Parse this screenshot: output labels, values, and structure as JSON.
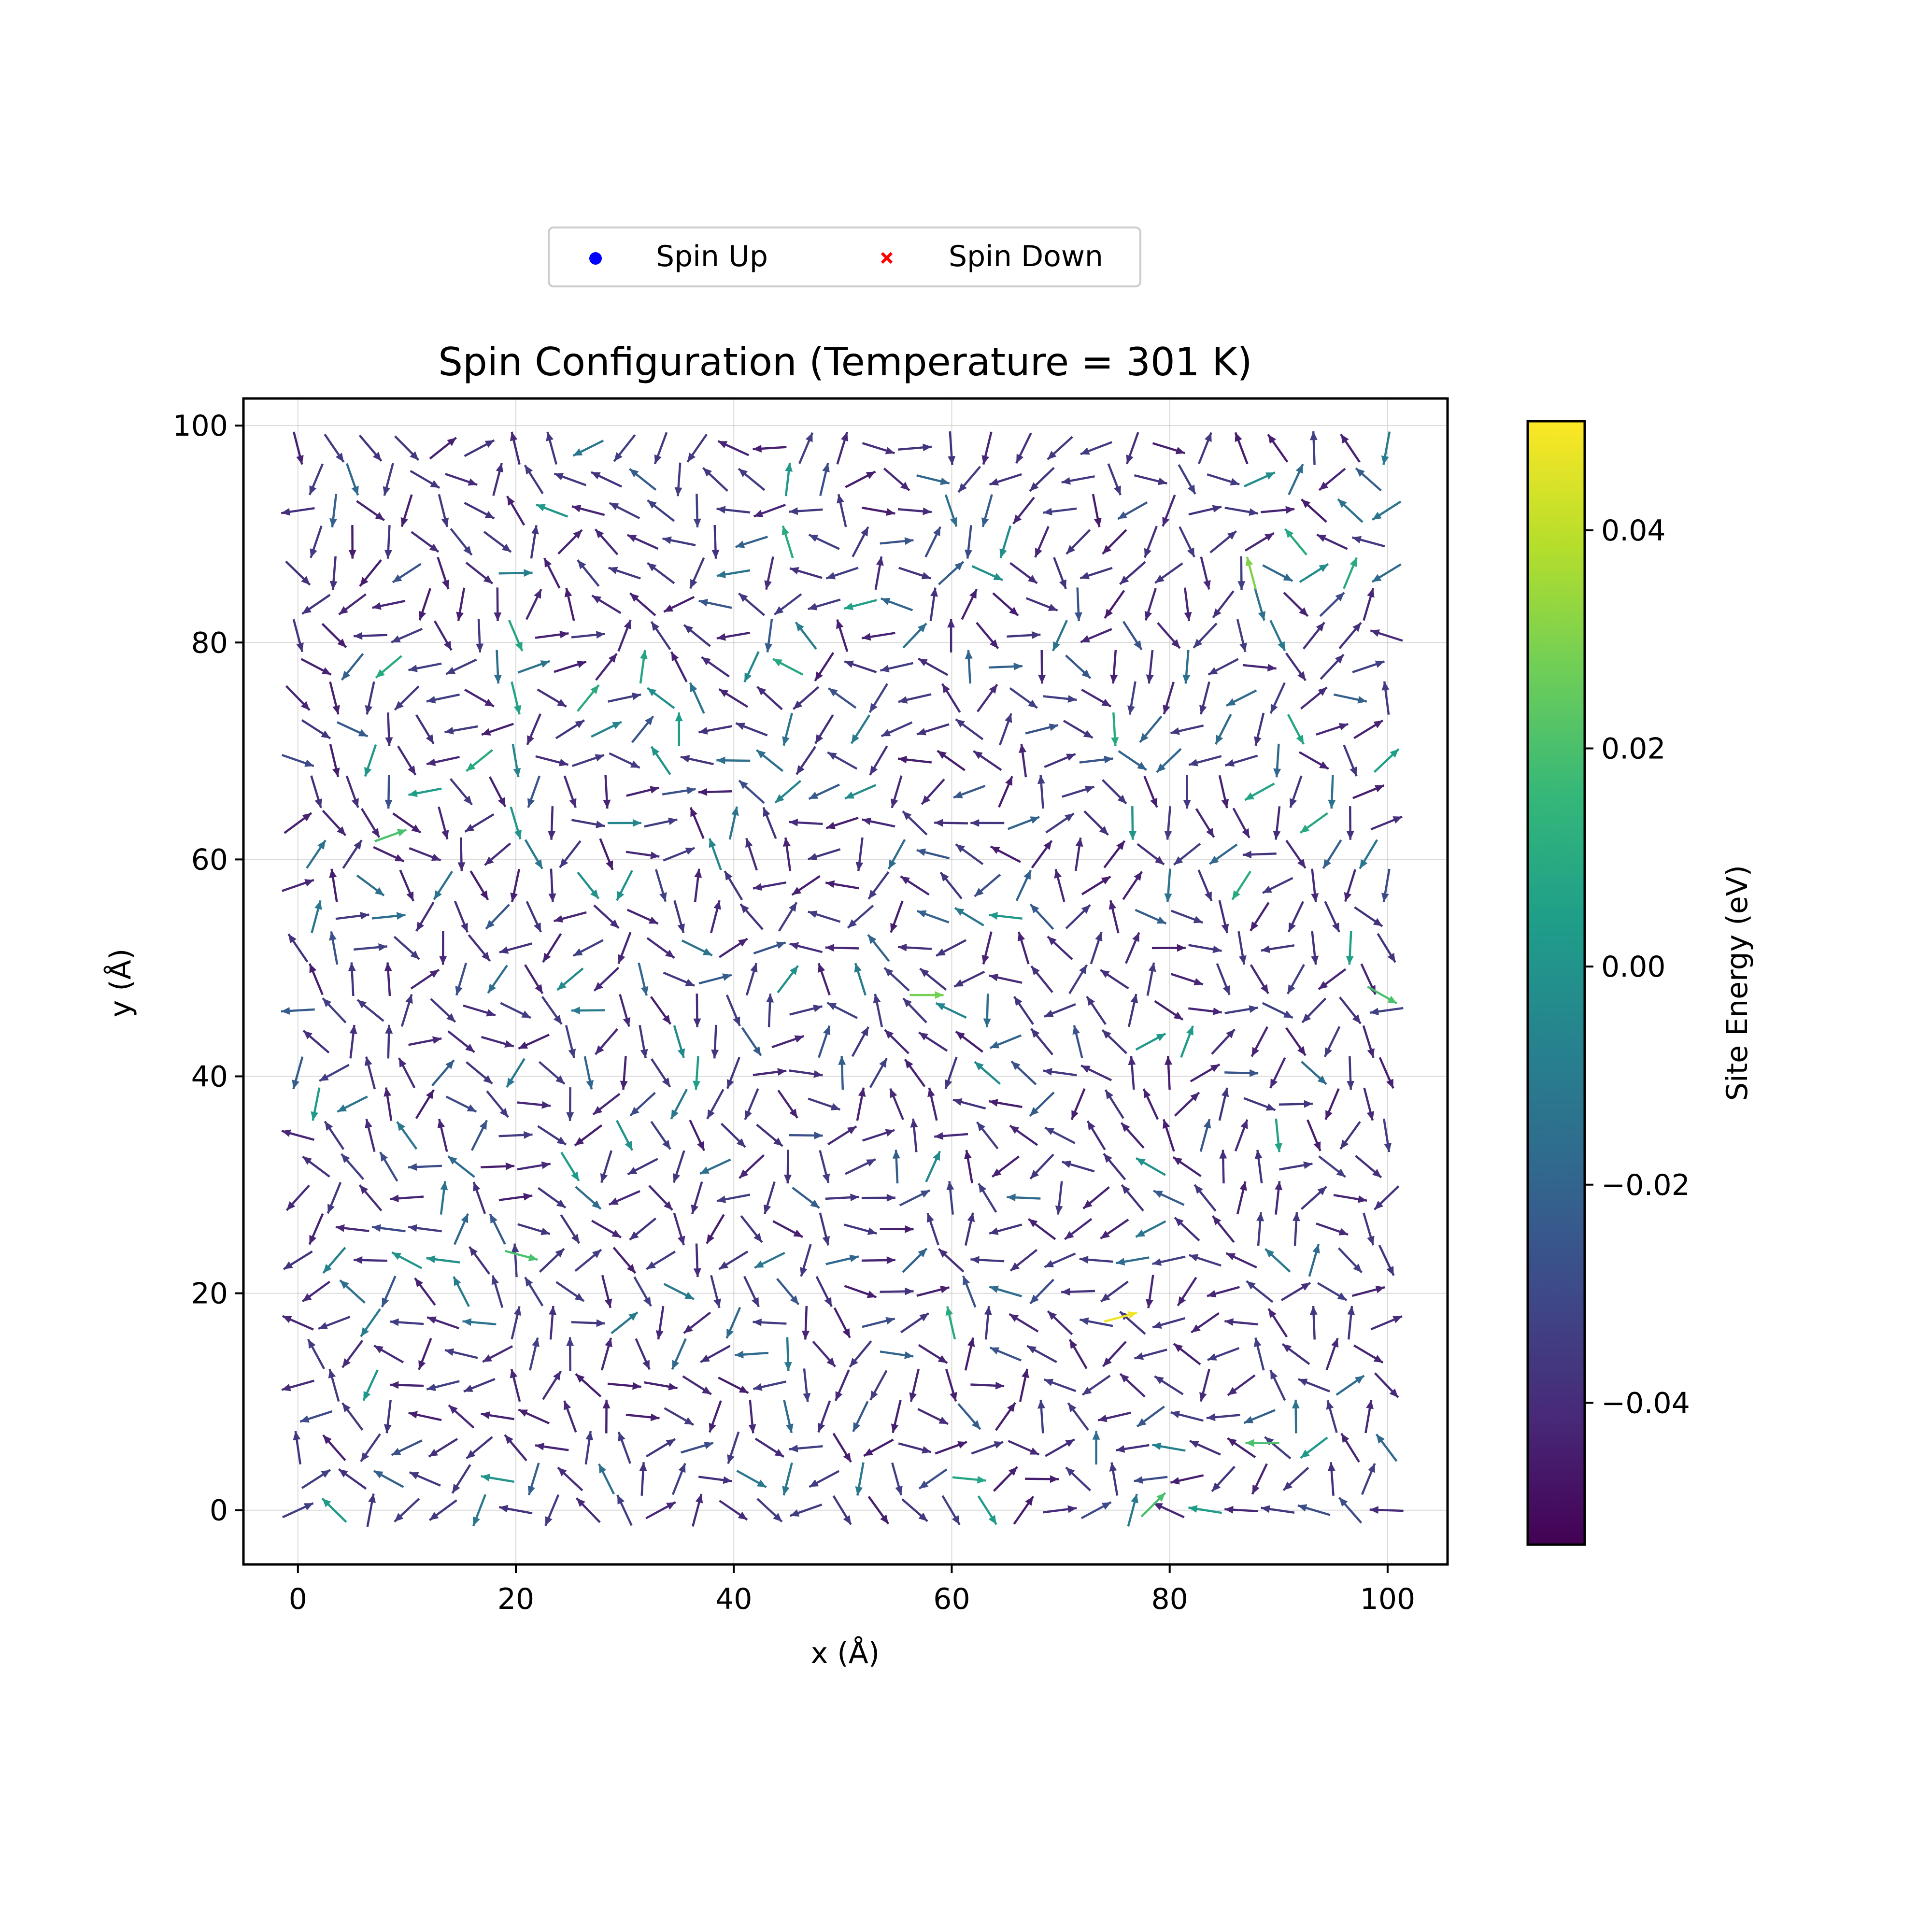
{
  "chart_data": {
    "type": "quiver",
    "title": "Spin Configuration (Temperature = 301 K)",
    "xlabel": "x (Å)",
    "ylabel": "y (Å)",
    "xlim": [
      -5,
      105.5
    ],
    "ylim": [
      -5,
      102.5
    ],
    "xticks": [
      0,
      20,
      40,
      60,
      80,
      100
    ],
    "yticks": [
      0,
      20,
      40,
      60,
      80,
      100
    ],
    "xtick_labels": [
      "0",
      "20",
      "40",
      "60",
      "80",
      "100"
    ],
    "ytick_labels": [
      "0",
      "20",
      "40",
      "60",
      "80",
      "100"
    ],
    "grid": true,
    "lattice": {
      "rows": 36,
      "cols": 32,
      "x_spacing": 3.33,
      "y_spacing": 2.88,
      "row_shift": 1.67
    },
    "colorbar": {
      "label": "Site Energy (eV)",
      "range": [
        -0.053,
        0.05
      ],
      "ticks": [
        -0.04,
        -0.02,
        0.0,
        0.02,
        0.04
      ],
      "tick_labels": [
        "−0.04",
        "−0.02",
        "0.00",
        "0.02",
        "0.04"
      ],
      "colormap": "viridis",
      "colormap_stops": [
        "#440154",
        "#482878",
        "#3e4989",
        "#31688e",
        "#26828e",
        "#1f9e89",
        "#35b779",
        "#6ece58",
        "#b5de2b",
        "#fde725"
      ]
    },
    "legend": {
      "placement": "top-center, above axes",
      "entries": [
        {
          "label": "Spin Up",
          "marker": "circle",
          "color": "#0000ff"
        },
        {
          "label": "Spin Down",
          "marker": "x",
          "color": "#ff0000"
        }
      ]
    },
    "arrow_length": 3.1,
    "typical_energy": -0.045,
    "random_seed": 301,
    "highlight_arrows": [
      {
        "x": 75.5,
        "y": 17.8,
        "angle": 15,
        "energy": 0.048
      },
      {
        "x": 87.5,
        "y": 86.4,
        "angle": 105,
        "energy": 0.03
      },
      {
        "x": 57.7,
        "y": 47.5,
        "angle": 0,
        "energy": 0.028
      },
      {
        "x": 99.5,
        "y": 47.5,
        "angle": -30,
        "energy": 0.02
      },
      {
        "x": 8.5,
        "y": 62.2,
        "angle": 20,
        "energy": 0.02
      },
      {
        "x": 20.5,
        "y": 23.5,
        "angle": -15,
        "energy": 0.02
      },
      {
        "x": 78.5,
        "y": 0.5,
        "angle": 45,
        "energy": 0.02
      },
      {
        "x": 88.5,
        "y": 6.2,
        "angle": 180,
        "energy": 0.02
      }
    ]
  }
}
